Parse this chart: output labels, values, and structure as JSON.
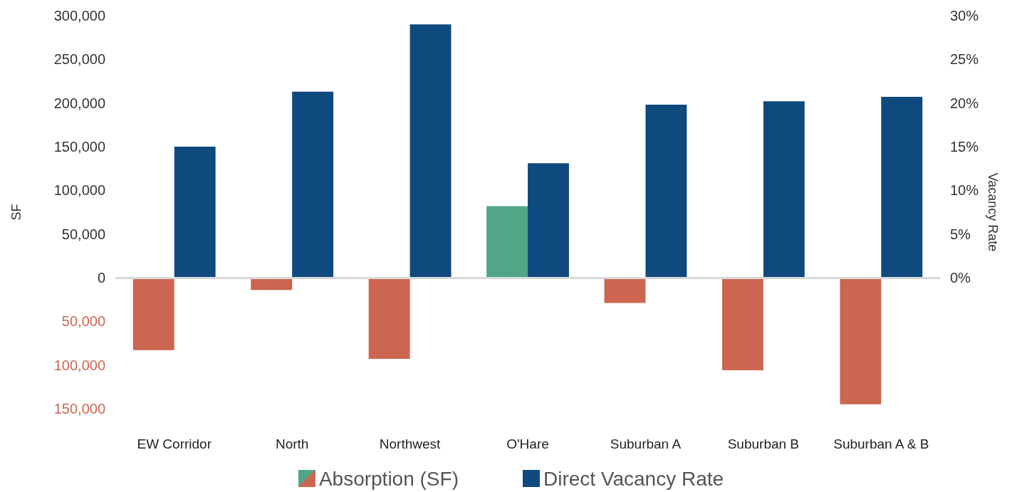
{
  "chart_data": {
    "type": "bar",
    "ylabel": "SF",
    "y2label": "Vacancy Rate",
    "categories": [
      "EW Corridor",
      "North",
      "Northwest",
      "O'Hare",
      "Suburban A",
      "Suburban B",
      "Suburban A & B"
    ],
    "series": [
      {
        "name": "Absorption (SF)",
        "values": [
          -83000,
          -14000,
          -93000,
          82000,
          -29000,
          -106000,
          -145000
        ],
        "colors": [
          "#cc6650",
          "#cc6650",
          "#cc6650",
          "#52a687",
          "#cc6650",
          "#cc6650",
          "#cc6650"
        ]
      },
      {
        "name": "Direct Vacancy Rate",
        "axis": "y2",
        "color": "#0f4a7e",
        "values": [
          15.0,
          21.3,
          29.0,
          13.1,
          19.8,
          20.2,
          20.7
        ]
      }
    ],
    "ylim": [
      -150000,
      300000
    ],
    "yticks": [
      {
        "value": -150000,
        "label": "150,000"
      },
      {
        "value": -100000,
        "label": "100,000"
      },
      {
        "value": -50000,
        "label": "50,000"
      },
      {
        "value": 0,
        "label": "0"
      },
      {
        "value": 50000,
        "label": "50,000"
      },
      {
        "value": 100000,
        "label": "100,000"
      },
      {
        "value": 150000,
        "label": "150,000"
      },
      {
        "value": 200000,
        "label": "200,000"
      },
      {
        "value": 250000,
        "label": "250,000"
      },
      {
        "value": 300000,
        "label": "300,000"
      }
    ],
    "y2lim": [
      -15,
      30
    ],
    "y2ticks": [
      {
        "value": 0,
        "label": "0%"
      },
      {
        "value": 5,
        "label": "5%"
      },
      {
        "value": 10,
        "label": "10%"
      },
      {
        "value": 15,
        "label": "15%"
      },
      {
        "value": 20,
        "label": "20%"
      },
      {
        "value": 25,
        "label": "25%"
      },
      {
        "value": 30,
        "label": "30%"
      }
    ],
    "ref_lines": [
      {
        "axis": "y",
        "value": 0,
        "color": "#d9d9d9"
      }
    ],
    "grid": false,
    "legend": "bottom"
  }
}
